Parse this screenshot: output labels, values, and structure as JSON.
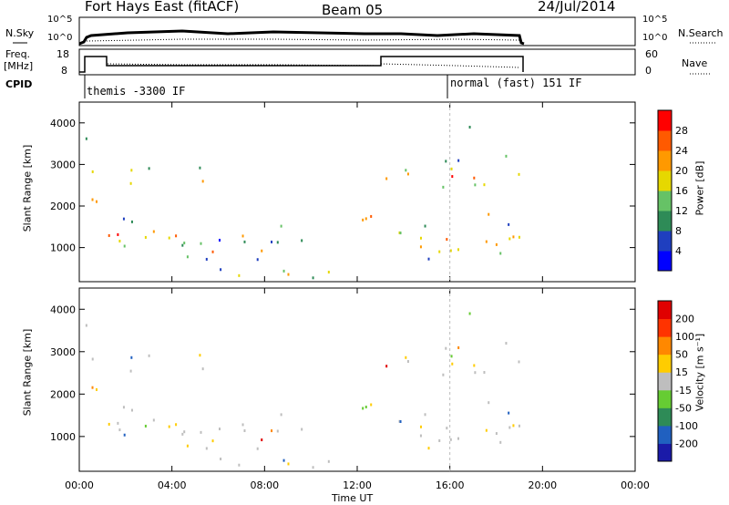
{
  "header": {
    "station": "Fort Hays East (fitACF)",
    "beam": "Beam 05",
    "date": "24/Jul/2014"
  },
  "top_panels": {
    "nsky_label": "N.Sky",
    "nsearch_label": "N.Search",
    "freq_label_1": "Freq.",
    "freq_label_2": "[MHz]",
    "nave_label": "Nave",
    "cpid_label": "CPID",
    "nsky_ticks": [
      "10^5",
      "10^0"
    ],
    "nsearch_ticks": [
      "10^5",
      "10^0"
    ],
    "freq_ticks": [
      "18",
      "8"
    ],
    "nave_ticks": [
      "60",
      "0"
    ],
    "cpid_1": "themis -3300 IF",
    "cpid_2": "normal (fast) 151 IF"
  },
  "chart_data": [
    {
      "type": "heatmap",
      "title": "",
      "ylabel": "Slant Range [km]",
      "xlabel": "",
      "colorbar_label": "Power [dB]",
      "colorbar_ticks": [
        "28",
        "24",
        "20",
        "16",
        "12",
        "8",
        "4"
      ],
      "colorbar_colors": [
        "#0000ff",
        "#1f3fbf",
        "#2e8b57",
        "#66c266",
        "#e6d800",
        "#ff9900",
        "#ff5a00",
        "#ff0000"
      ],
      "ylim": [
        180,
        4500
      ],
      "yticks": [
        "1000",
        "2000",
        "3000",
        "4000"
      ],
      "xlim": [
        0,
        24
      ]
    },
    {
      "type": "heatmap",
      "title": "",
      "ylabel": "Slant Range [km]",
      "xlabel": "Time UT",
      "colorbar_label": "Velocity [m s⁻¹]",
      "colorbar_ticks": [
        "200",
        "100",
        "50",
        "15",
        "-15",
        "-50",
        "-100",
        "-200"
      ],
      "colorbar_colors": [
        "#1a1aa8",
        "#2060c0",
        "#2e8b57",
        "#66cc33",
        "#bebebe",
        "#ffcc00",
        "#ff8800",
        "#ff3300",
        "#e00000"
      ],
      "ylim": [
        180,
        4500
      ],
      "yticks": [
        "1000",
        "2000",
        "3000",
        "4000"
      ],
      "xlim": [
        0,
        24
      ],
      "xticks": [
        "00:00",
        "04:00",
        "08:00",
        "12:00",
        "16:00",
        "20:00",
        "00:00"
      ]
    }
  ]
}
